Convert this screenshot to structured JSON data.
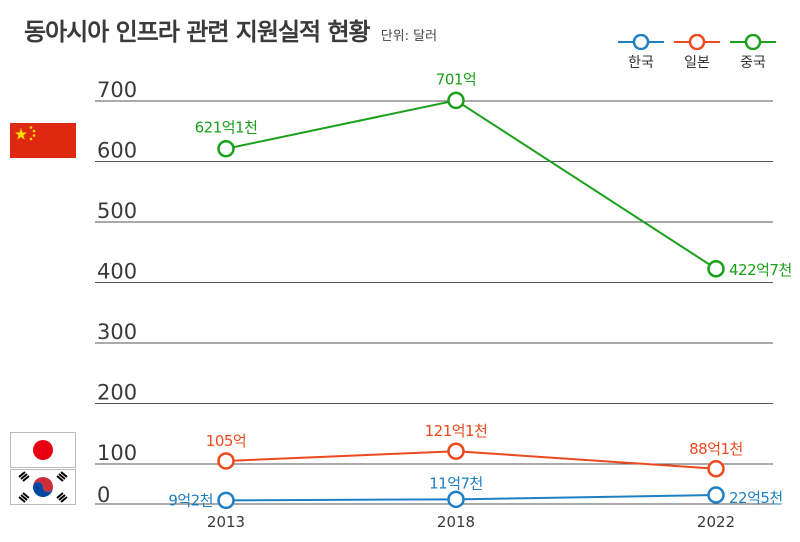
{
  "header": {
    "title": "동아시아 인프라 관련 지원실적 현황",
    "unit": "단위: 달러"
  },
  "colors": {
    "korea": "#1f7fc4",
    "japan": "#ec4a1c",
    "china": "#1aa01a",
    "grid": "#555555"
  },
  "icons": {
    "china_flag": "china-flag-icon",
    "japan_flag": "japan-flag-icon",
    "korea_flag": "korea-flag-icon"
  },
  "chart_data": {
    "type": "line",
    "title": "동아시아 인프라 관련 지원실적 현황",
    "ylabel": "",
    "xlabel": "",
    "x": [
      "2013",
      "2018",
      "2022"
    ],
    "yticks": [
      "0",
      "100",
      "200",
      "300",
      "400",
      "500",
      "600",
      "700"
    ],
    "ylim": [
      0,
      700
    ],
    "grid": true,
    "legend": "top-right",
    "series": [
      {
        "name": "한국",
        "color": "#1f7fc4",
        "values": [
          9.2,
          11.7,
          22.5
        ],
        "labels": [
          "9억2천",
          "11억7천",
          "22억5천"
        ]
      },
      {
        "name": "일본",
        "color": "#ec4a1c",
        "values": [
          105,
          121.1,
          88.1
        ],
        "labels": [
          "105억",
          "121억1천",
          "88억1천"
        ]
      },
      {
        "name": "중국",
        "color": "#1aa01a",
        "values": [
          621.1,
          701,
          422.7
        ],
        "labels": [
          "621억1천",
          "701억",
          "422억7천"
        ]
      }
    ]
  }
}
